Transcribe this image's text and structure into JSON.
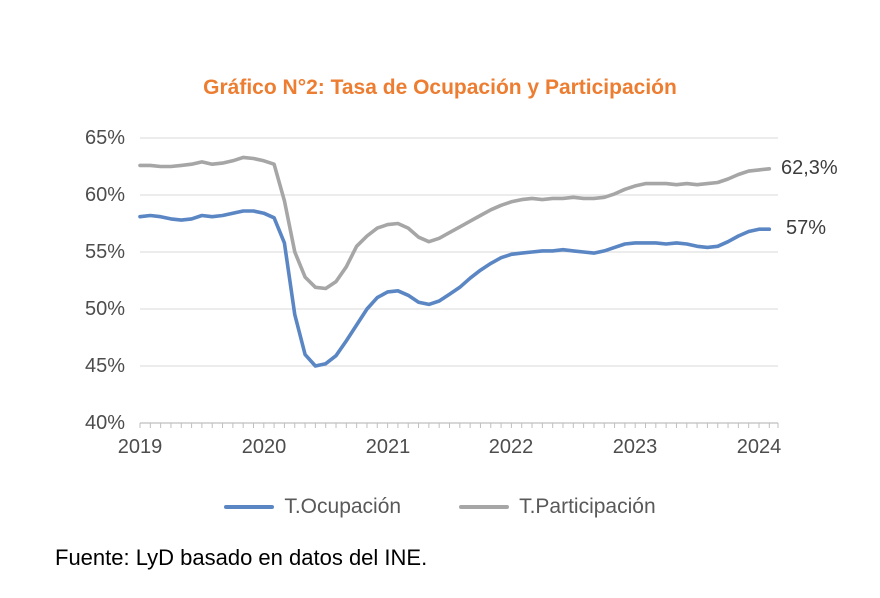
{
  "chart_data": {
    "type": "line",
    "title": "Gráfico N°2: Tasa de Ocupación y Participación",
    "title_color": "#ED7D31",
    "source_note": "Fuente: LyD basado en datos del INE.",
    "ylim": [
      40,
      65
    ],
    "y_ticks": [
      "65%",
      "60%",
      "55%",
      "50%",
      "45%",
      "40%"
    ],
    "x_tick_labels": [
      "2019",
      "2020",
      "2021",
      "2022",
      "2023",
      "2024"
    ],
    "grid": "horizontal-only",
    "legend_position": "bottom",
    "x": [
      "2019-01",
      "2019-02",
      "2019-03",
      "2019-04",
      "2019-05",
      "2019-06",
      "2019-07",
      "2019-08",
      "2019-09",
      "2019-10",
      "2019-11",
      "2019-12",
      "2020-01",
      "2020-02",
      "2020-03",
      "2020-04",
      "2020-05",
      "2020-06",
      "2020-07",
      "2020-08",
      "2020-09",
      "2020-10",
      "2020-11",
      "2020-12",
      "2021-01",
      "2021-02",
      "2021-03",
      "2021-04",
      "2021-05",
      "2021-06",
      "2021-07",
      "2021-08",
      "2021-09",
      "2021-10",
      "2021-11",
      "2021-12",
      "2022-01",
      "2022-02",
      "2022-03",
      "2022-04",
      "2022-05",
      "2022-06",
      "2022-07",
      "2022-08",
      "2022-09",
      "2022-10",
      "2022-11",
      "2022-12",
      "2023-01",
      "2023-02",
      "2023-03",
      "2023-04",
      "2023-05",
      "2023-06",
      "2023-07",
      "2023-08",
      "2023-09",
      "2023-10",
      "2023-11",
      "2023-12",
      "2024-01",
      "2024-02"
    ],
    "series": [
      {
        "name": "T.Ocupación",
        "color": "#5B86C4",
        "end_label": "57%",
        "values": [
          58.1,
          58.2,
          58.1,
          57.9,
          57.8,
          57.9,
          58.2,
          58.1,
          58.2,
          58.4,
          58.6,
          58.6,
          58.4,
          58.0,
          55.8,
          49.5,
          46.0,
          45.0,
          45.2,
          45.9,
          47.2,
          48.6,
          50.0,
          51.0,
          51.5,
          51.6,
          51.2,
          50.6,
          50.4,
          50.7,
          51.3,
          51.9,
          52.7,
          53.4,
          54.0,
          54.5,
          54.8,
          54.9,
          55.0,
          55.1,
          55.1,
          55.2,
          55.1,
          55.0,
          54.9,
          55.1,
          55.4,
          55.7,
          55.8,
          55.8,
          55.8,
          55.7,
          55.8,
          55.7,
          55.5,
          55.4,
          55.5,
          55.9,
          56.4,
          56.8,
          57.0,
          57.0
        ]
      },
      {
        "name": "T.Participación",
        "color": "#A6A6A6",
        "end_label": "62,3%",
        "values": [
          62.6,
          62.6,
          62.5,
          62.5,
          62.6,
          62.7,
          62.9,
          62.7,
          62.8,
          63.0,
          63.3,
          63.2,
          63.0,
          62.7,
          59.5,
          55.0,
          52.8,
          51.9,
          51.8,
          52.4,
          53.7,
          55.5,
          56.4,
          57.1,
          57.4,
          57.5,
          57.1,
          56.3,
          55.9,
          56.2,
          56.7,
          57.2,
          57.7,
          58.2,
          58.7,
          59.1,
          59.4,
          59.6,
          59.7,
          59.6,
          59.7,
          59.7,
          59.8,
          59.7,
          59.7,
          59.8,
          60.1,
          60.5,
          60.8,
          61.0,
          61.0,
          61.0,
          60.9,
          61.0,
          60.9,
          61.0,
          61.1,
          61.4,
          61.8,
          62.1,
          62.2,
          62.3
        ]
      }
    ],
    "colors": {
      "gridline": "#D9D9D9",
      "axis": "#BFBFBF",
      "tick_label": "#4D4D4D",
      "legend_text": "#595959"
    }
  }
}
